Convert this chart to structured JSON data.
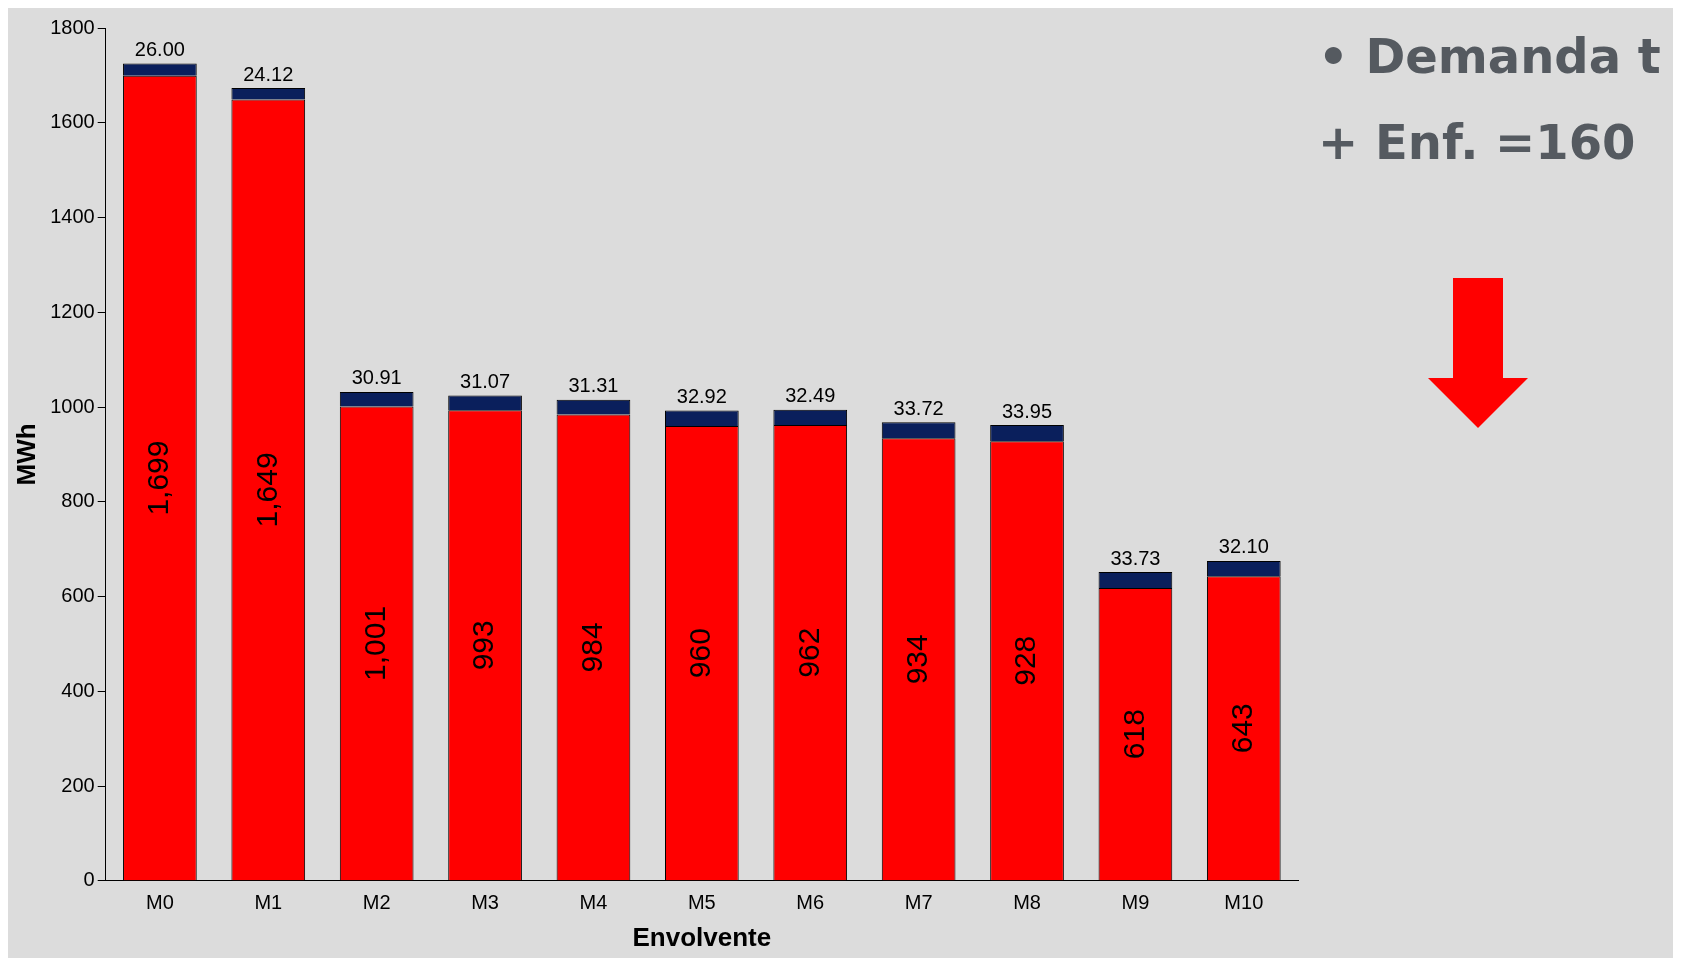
{
  "chart_data": {
    "type": "bar",
    "stacked": true,
    "xlabel": "Envolvente",
    "ylabel": "MWh",
    "categories": [
      "M0",
      "M1",
      "M2",
      "M3",
      "M4",
      "M5",
      "M6",
      "M7",
      "M8",
      "M9",
      "M10"
    ],
    "series": [
      {
        "color": "#ff0000",
        "values": [
          1699,
          1649,
          1001,
          993,
          984,
          960,
          962,
          934,
          928,
          618,
          643
        ],
        "value_labels": [
          "1,699",
          "1,649",
          "1,001",
          "993",
          "984",
          "960",
          "962",
          "934",
          "928",
          "618",
          "643"
        ]
      },
      {
        "color": "#0a1f5c",
        "values": [
          26.0,
          24.12,
          30.91,
          31.07,
          31.31,
          32.92,
          32.49,
          33.72,
          33.95,
          33.73,
          32.1
        ],
        "value_labels": [
          "26.00",
          "24.12",
          "30.91",
          "31.07",
          "31.31",
          "32.92",
          "32.49",
          "33.72",
          "33.95",
          "33.73",
          "32.10"
        ]
      }
    ],
    "ylim": [
      0,
      1800
    ],
    "yticks": [
      0,
      200,
      400,
      600,
      800,
      1000,
      1200,
      1400,
      1600,
      1800
    ],
    "annotations": [
      "• Demanda t",
      "+ Enf. =160"
    ]
  }
}
